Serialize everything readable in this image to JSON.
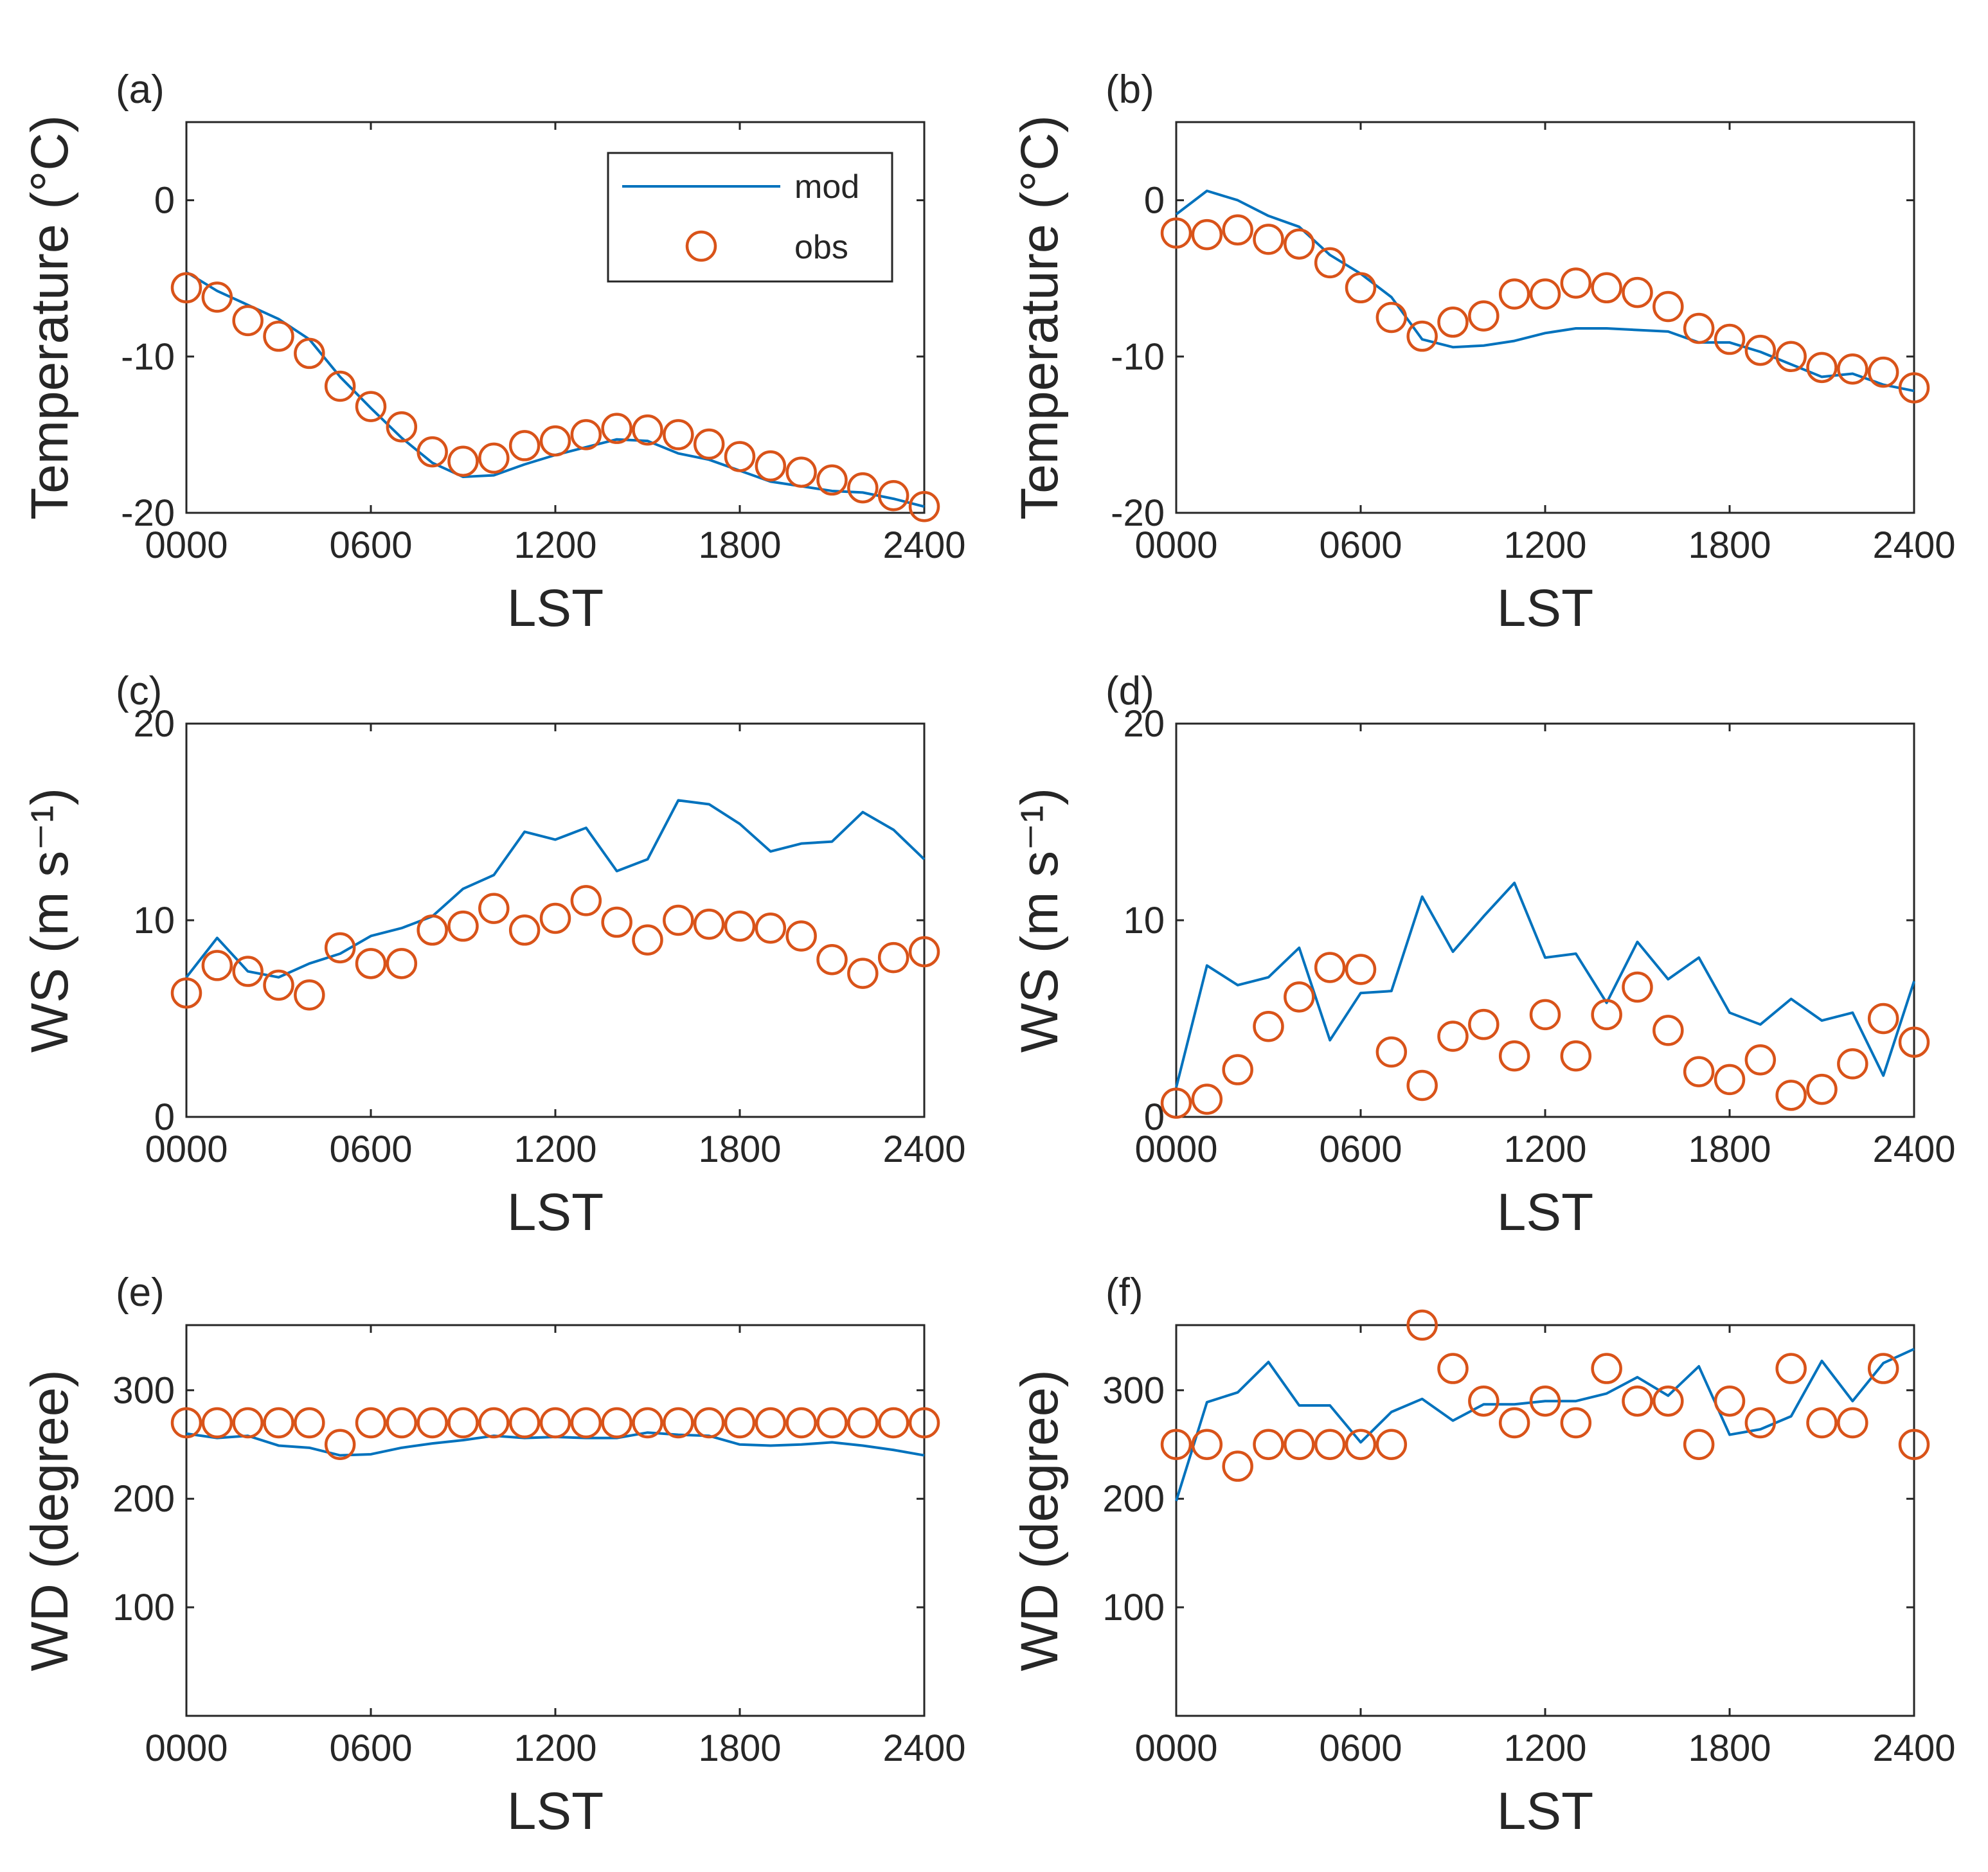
{
  "colors": {
    "mod": "#0072BD",
    "obs": "#D95319"
  },
  "legend": {
    "mod_label": "mod",
    "obs_label": "obs"
  },
  "chart_data": [
    {
      "panel": "(a)",
      "type": "line",
      "ylabel": "Temperature (°C)",
      "xlabel": "LST",
      "xlim": [
        0,
        24
      ],
      "ylim": [
        -20,
        5
      ],
      "xticks": [
        0,
        6,
        12,
        18,
        24
      ],
      "xticklabels": [
        "0000",
        "0600",
        "1200",
        "1800",
        "2400"
      ],
      "yticks": [
        -20,
        -10,
        0
      ],
      "yticklabels": [
        "-20",
        "-10",
        "0"
      ],
      "legend": true,
      "series": [
        {
          "name": "mod",
          "x": [
            0,
            1,
            2,
            3,
            4,
            5,
            6,
            7,
            8,
            9,
            10,
            11,
            12,
            13,
            14,
            15,
            16,
            17,
            18,
            19,
            20,
            21,
            22,
            23,
            24
          ],
          "values": [
            -4.6,
            -5.8,
            -6.7,
            -7.6,
            -8.9,
            -11.3,
            -13.3,
            -15.2,
            -16.8,
            -17.7,
            -17.6,
            -16.9,
            -16.3,
            -15.8,
            -15.3,
            -15.4,
            -16.2,
            -16.6,
            -17.3,
            -18.0,
            -18.3,
            -18.6,
            -18.7,
            -19.1,
            -19.6
          ]
        },
        {
          "name": "obs",
          "x": [
            0,
            1,
            2,
            3,
            4,
            5,
            6,
            7,
            8,
            9,
            10,
            11,
            12,
            13,
            14,
            15,
            16,
            17,
            18,
            19,
            20,
            21,
            22,
            23,
            24
          ],
          "values": [
            -5.6,
            -6.2,
            -7.7,
            -8.7,
            -9.8,
            -11.9,
            -13.2,
            -14.5,
            -16.1,
            -16.7,
            -16.5,
            -15.7,
            -15.4,
            -15.0,
            -14.6,
            -14.7,
            -15.0,
            -15.6,
            -16.4,
            -17.0,
            -17.4,
            -17.9,
            -18.4,
            -18.9,
            -19.6
          ]
        }
      ]
    },
    {
      "panel": "(b)",
      "type": "line",
      "ylabel": "Temperature (°C)",
      "xlabel": "LST",
      "xlim": [
        0,
        24
      ],
      "ylim": [
        -20,
        5
      ],
      "xticks": [
        0,
        6,
        12,
        18,
        24
      ],
      "xticklabels": [
        "0000",
        "0600",
        "1200",
        "1800",
        "2400"
      ],
      "yticks": [
        -20,
        -10,
        0
      ],
      "yticklabels": [
        "-20",
        "-10",
        "0"
      ],
      "legend": false,
      "series": [
        {
          "name": "mod",
          "x": [
            0,
            1,
            2,
            3,
            4,
            5,
            6,
            7,
            8,
            9,
            10,
            11,
            12,
            13,
            14,
            15,
            16,
            17,
            18,
            19,
            20,
            21,
            22,
            23,
            24
          ],
          "values": [
            -0.9,
            0.6,
            0.0,
            -1.0,
            -1.7,
            -3.5,
            -4.7,
            -6.2,
            -8.9,
            -9.4,
            -9.3,
            -9.0,
            -8.5,
            -8.2,
            -8.2,
            -8.3,
            -8.4,
            -9.1,
            -9.1,
            -9.7,
            -10.5,
            -11.3,
            -11.1,
            -11.8,
            -12.2
          ]
        },
        {
          "name": "obs",
          "x": [
            0,
            1,
            2,
            3,
            4,
            5,
            6,
            7,
            8,
            9,
            10,
            11,
            12,
            13,
            14,
            15,
            16,
            17,
            18,
            19,
            20,
            21,
            22,
            23,
            24
          ],
          "values": [
            -2.1,
            -2.2,
            -1.9,
            -2.5,
            -2.8,
            -4.0,
            -5.6,
            -7.5,
            -8.7,
            -7.8,
            -7.4,
            -6.0,
            -6.0,
            -5.3,
            -5.6,
            -5.9,
            -6.8,
            -8.2,
            -8.9,
            -9.6,
            -10.0,
            -10.7,
            -10.8,
            -11.0,
            -12.0
          ]
        }
      ]
    },
    {
      "panel": "(c)",
      "type": "line",
      "ylabel": "WS (m s⁻¹)",
      "xlabel": "LST",
      "xlim": [
        0,
        24
      ],
      "ylim": [
        0,
        20
      ],
      "xticks": [
        0,
        6,
        12,
        18,
        24
      ],
      "xticklabels": [
        "0000",
        "0600",
        "1200",
        "1800",
        "2400"
      ],
      "yticks": [
        0,
        10,
        20
      ],
      "yticklabels": [
        "0",
        "10",
        "20"
      ],
      "legend": false,
      "series": [
        {
          "name": "mod",
          "x": [
            0,
            1,
            2,
            3,
            4,
            5,
            6,
            7,
            8,
            9,
            10,
            11,
            12,
            13,
            14,
            15,
            16,
            17,
            18,
            19,
            20,
            21,
            22,
            23,
            24
          ],
          "values": [
            7.1,
            9.1,
            7.4,
            7.1,
            7.8,
            8.3,
            9.2,
            9.6,
            10.2,
            11.6,
            12.3,
            14.5,
            14.1,
            14.7,
            12.5,
            13.1,
            16.1,
            15.9,
            14.9,
            13.5,
            13.9,
            14.0,
            15.5,
            14.6,
            13.1
          ]
        },
        {
          "name": "obs",
          "x": [
            0,
            1,
            2,
            3,
            4,
            5,
            6,
            7,
            8,
            9,
            10,
            11,
            12,
            13,
            14,
            15,
            16,
            17,
            18,
            19,
            20,
            21,
            22,
            23,
            24
          ],
          "values": [
            6.3,
            7.7,
            7.4,
            6.7,
            6.2,
            8.6,
            7.8,
            7.8,
            9.5,
            9.7,
            10.6,
            9.5,
            10.1,
            11.0,
            9.9,
            9.0,
            10.0,
            9.8,
            9.7,
            9.6,
            9.2,
            8.0,
            7.3,
            8.1,
            8.4
          ]
        }
      ]
    },
    {
      "panel": "(d)",
      "type": "line",
      "ylabel": "WS (m s⁻¹)",
      "xlabel": "LST",
      "xlim": [
        0,
        24
      ],
      "ylim": [
        0,
        20
      ],
      "xticks": [
        0,
        6,
        12,
        18,
        24
      ],
      "xticklabels": [
        "0000",
        "0600",
        "1200",
        "1800",
        "2400"
      ],
      "yticks": [
        0,
        10,
        20
      ],
      "yticklabels": [
        "0",
        "10",
        "20"
      ],
      "legend": false,
      "series": [
        {
          "name": "mod",
          "x": [
            0,
            1,
            2,
            3,
            4,
            5,
            6,
            7,
            8,
            9,
            10,
            11,
            12,
            13,
            14,
            15,
            16,
            17,
            18,
            19,
            20,
            21,
            22,
            23,
            24
          ],
          "values": [
            1.5,
            7.7,
            6.7,
            7.1,
            8.6,
            3.9,
            6.3,
            6.4,
            11.2,
            8.4,
            10.2,
            11.9,
            8.1,
            8.3,
            5.8,
            8.9,
            7.0,
            8.1,
            5.3,
            4.7,
            6.0,
            4.9,
            5.3,
            2.1,
            6.9
          ]
        },
        {
          "name": "obs",
          "x": [
            0,
            1,
            2,
            3,
            4,
            5,
            6,
            7,
            8,
            9,
            10,
            11,
            12,
            13,
            14,
            15,
            16,
            17,
            18,
            19,
            20,
            21,
            22,
            23,
            24
          ],
          "values": [
            0.7,
            0.9,
            2.4,
            4.6,
            6.1,
            7.6,
            7.5,
            3.3,
            1.6,
            4.1,
            4.7,
            3.1,
            5.2,
            3.1,
            5.2,
            6.6,
            4.4,
            2.3,
            1.9,
            2.9,
            1.1,
            1.4,
            2.7,
            5.0,
            3.8
          ]
        }
      ]
    },
    {
      "panel": "(e)",
      "type": "line",
      "ylabel": "WD (degree)",
      "xlabel": "LST",
      "xlim": [
        0,
        24
      ],
      "ylim": [
        0,
        360
      ],
      "xticks": [
        0,
        6,
        12,
        18,
        24
      ],
      "xticklabels": [
        "0000",
        "0600",
        "1200",
        "1800",
        "2400"
      ],
      "yticks": [
        100,
        200,
        300
      ],
      "yticklabels": [
        "100",
        "200",
        "300"
      ],
      "legend": false,
      "series": [
        {
          "name": "mod",
          "x": [
            0,
            1,
            2,
            3,
            4,
            5,
            6,
            7,
            8,
            9,
            10,
            11,
            12,
            13,
            14,
            15,
            16,
            17,
            18,
            19,
            20,
            21,
            22,
            23,
            24
          ],
          "values": [
            260,
            256,
            258,
            249,
            247,
            240,
            241,
            247,
            251,
            254,
            258,
            256,
            257,
            256,
            256,
            261,
            259,
            258,
            250,
            249,
            250,
            252,
            249,
            245,
            240
          ]
        },
        {
          "name": "obs",
          "x": [
            0,
            1,
            2,
            3,
            4,
            5,
            6,
            7,
            8,
            9,
            10,
            11,
            12,
            13,
            14,
            15,
            16,
            17,
            18,
            19,
            20,
            21,
            22,
            23,
            24
          ],
          "values": [
            270,
            270,
            270,
            270,
            270,
            250,
            270,
            270,
            270,
            270,
            270,
            270,
            270,
            270,
            270,
            270,
            270,
            270,
            270,
            270,
            270,
            270,
            270,
            270,
            270
          ]
        }
      ]
    },
    {
      "panel": "(f)",
      "type": "line",
      "ylabel": "WD (degree)",
      "xlabel": "LST",
      "xlim": [
        0,
        24
      ],
      "ylim": [
        0,
        360
      ],
      "xticks": [
        0,
        6,
        12,
        18,
        24
      ],
      "xticklabels": [
        "0000",
        "0600",
        "1200",
        "1800",
        "2400"
      ],
      "yticks": [
        100,
        200,
        300
      ],
      "yticklabels": [
        "100",
        "200",
        "300"
      ],
      "legend": false,
      "series": [
        {
          "name": "mod",
          "x": [
            0,
            1,
            2,
            3,
            4,
            5,
            6,
            7,
            8,
            9,
            10,
            11,
            12,
            13,
            14,
            15,
            16,
            17,
            18,
            19,
            20,
            21,
            22,
            23,
            24
          ],
          "values": [
            198,
            289,
            298,
            326,
            286,
            286,
            252,
            280,
            292,
            272,
            287,
            287,
            290,
            290,
            297,
            312,
            295,
            322,
            259,
            264,
            276,
            327,
            290,
            325,
            338
          ]
        },
        {
          "name": "obs",
          "x": [
            0,
            1,
            2,
            3,
            4,
            5,
            6,
            7,
            8,
            9,
            10,
            11,
            12,
            13,
            14,
            15,
            16,
            17,
            18,
            19,
            20,
            21,
            22,
            23,
            24
          ],
          "values": [
            250,
            250,
            230,
            250,
            250,
            250,
            250,
            250,
            360,
            320,
            290,
            270,
            290,
            270,
            320,
            290,
            290,
            250,
            290,
            270,
            320,
            270,
            270,
            320,
            250
          ]
        }
      ]
    }
  ]
}
